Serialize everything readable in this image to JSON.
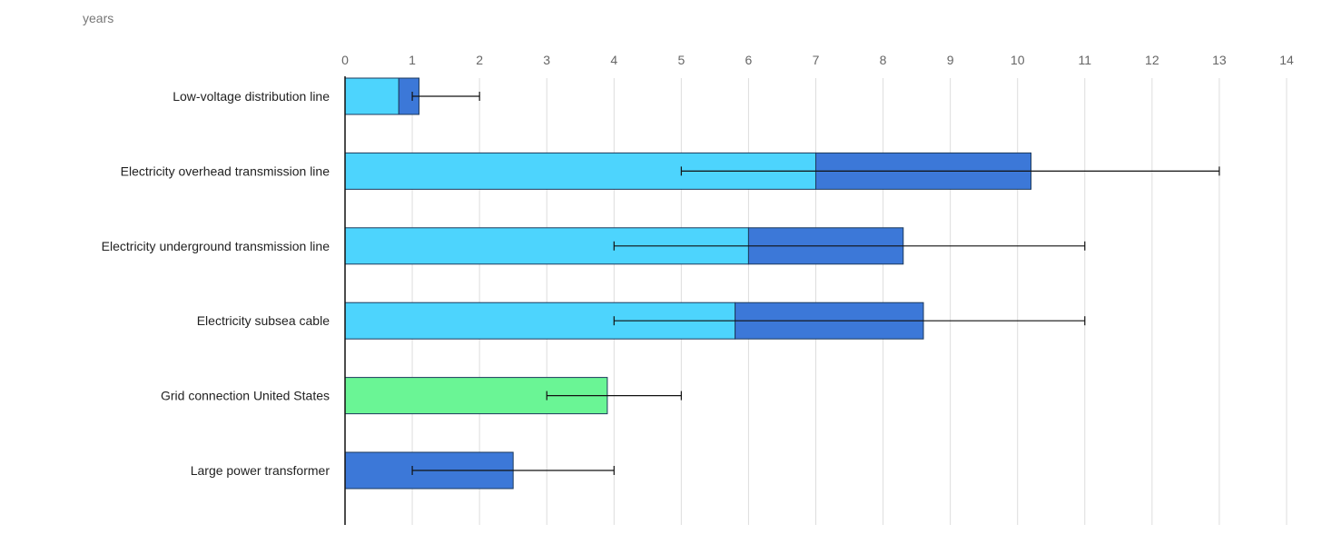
{
  "chart_data": {
    "type": "bar",
    "orientation": "horizontal",
    "stacked": true,
    "unit_label": "years",
    "xlim": [
      0,
      14
    ],
    "x_ticks": [
      0,
      1,
      2,
      3,
      4,
      5,
      6,
      7,
      8,
      9,
      10,
      11,
      12,
      13,
      14
    ],
    "grid": true,
    "categories": [
      "Low-voltage distribution line",
      "Electricity overhead transmission line",
      "Electricity underground transmission line",
      "Electricity subsea cable",
      "Grid connection United States",
      "Large power transformer"
    ],
    "segments": [
      [
        {
          "value": 0.8,
          "color": "#4dd4fd"
        },
        {
          "value": 0.3,
          "color": "#3c78d8"
        }
      ],
      [
        {
          "value": 7.0,
          "color": "#4dd4fd"
        },
        {
          "value": 3.2,
          "color": "#3c78d8"
        }
      ],
      [
        {
          "value": 6.0,
          "color": "#4dd4fd"
        },
        {
          "value": 2.3,
          "color": "#3c78d8"
        }
      ],
      [
        {
          "value": 5.8,
          "color": "#4dd4fd"
        },
        {
          "value": 2.8,
          "color": "#3c78d8"
        }
      ],
      [
        {
          "value": 3.9,
          "color": "#6af595"
        }
      ],
      [
        {
          "value": 2.5,
          "color": "#3c78d8"
        }
      ]
    ],
    "ranges": [
      [
        1,
        2
      ],
      [
        5,
        13
      ],
      [
        4,
        11
      ],
      [
        4,
        11
      ],
      [
        3,
        5
      ],
      [
        1,
        4
      ]
    ]
  }
}
